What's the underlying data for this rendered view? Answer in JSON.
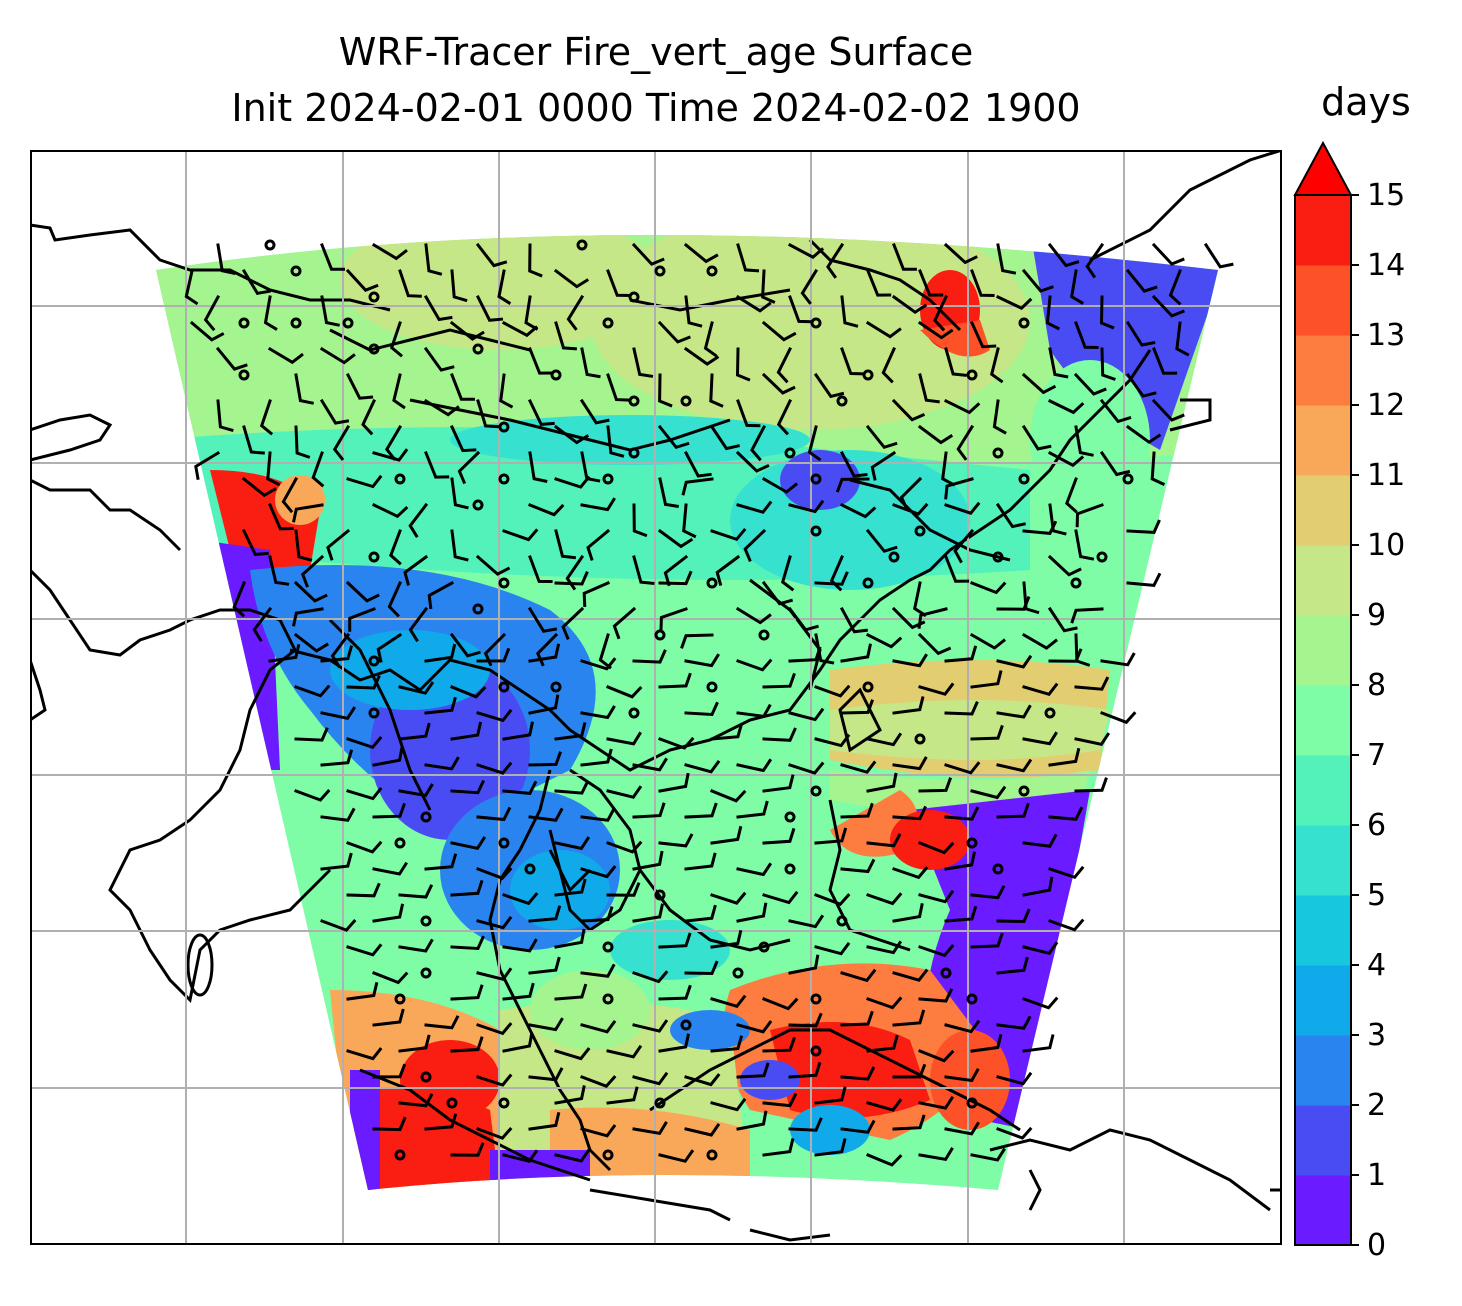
{
  "title": {
    "line1": "WRF-Tracer Fire_vert_age Surface",
    "line2": "Init 2024-02-01 0000 Time 2024-02-02 1900"
  },
  "colorbar": {
    "unit_label": "days",
    "ticks": [
      "0",
      "1",
      "2",
      "3",
      "4",
      "5",
      "6",
      "7",
      "8",
      "9",
      "10",
      "11",
      "12",
      "13",
      "14",
      "15"
    ],
    "levels": [
      0,
      1,
      2,
      3,
      4,
      5,
      6,
      7,
      8,
      9,
      10,
      11,
      12,
      13,
      14,
      15
    ],
    "colors": [
      "#6a1bff",
      "#4a4cf3",
      "#2a84ef",
      "#10aaea",
      "#16c7dd",
      "#36e2cf",
      "#54f2bb",
      "#7efca6",
      "#a4f48f",
      "#c6e787",
      "#e3cd71",
      "#f9a85a",
      "#fd7c40",
      "#fd5128",
      "#f91d12"
    ],
    "extend": "max",
    "extend_color": "#ff0000"
  },
  "map": {
    "gridlines": true,
    "colormap": "rainbow"
  }
}
